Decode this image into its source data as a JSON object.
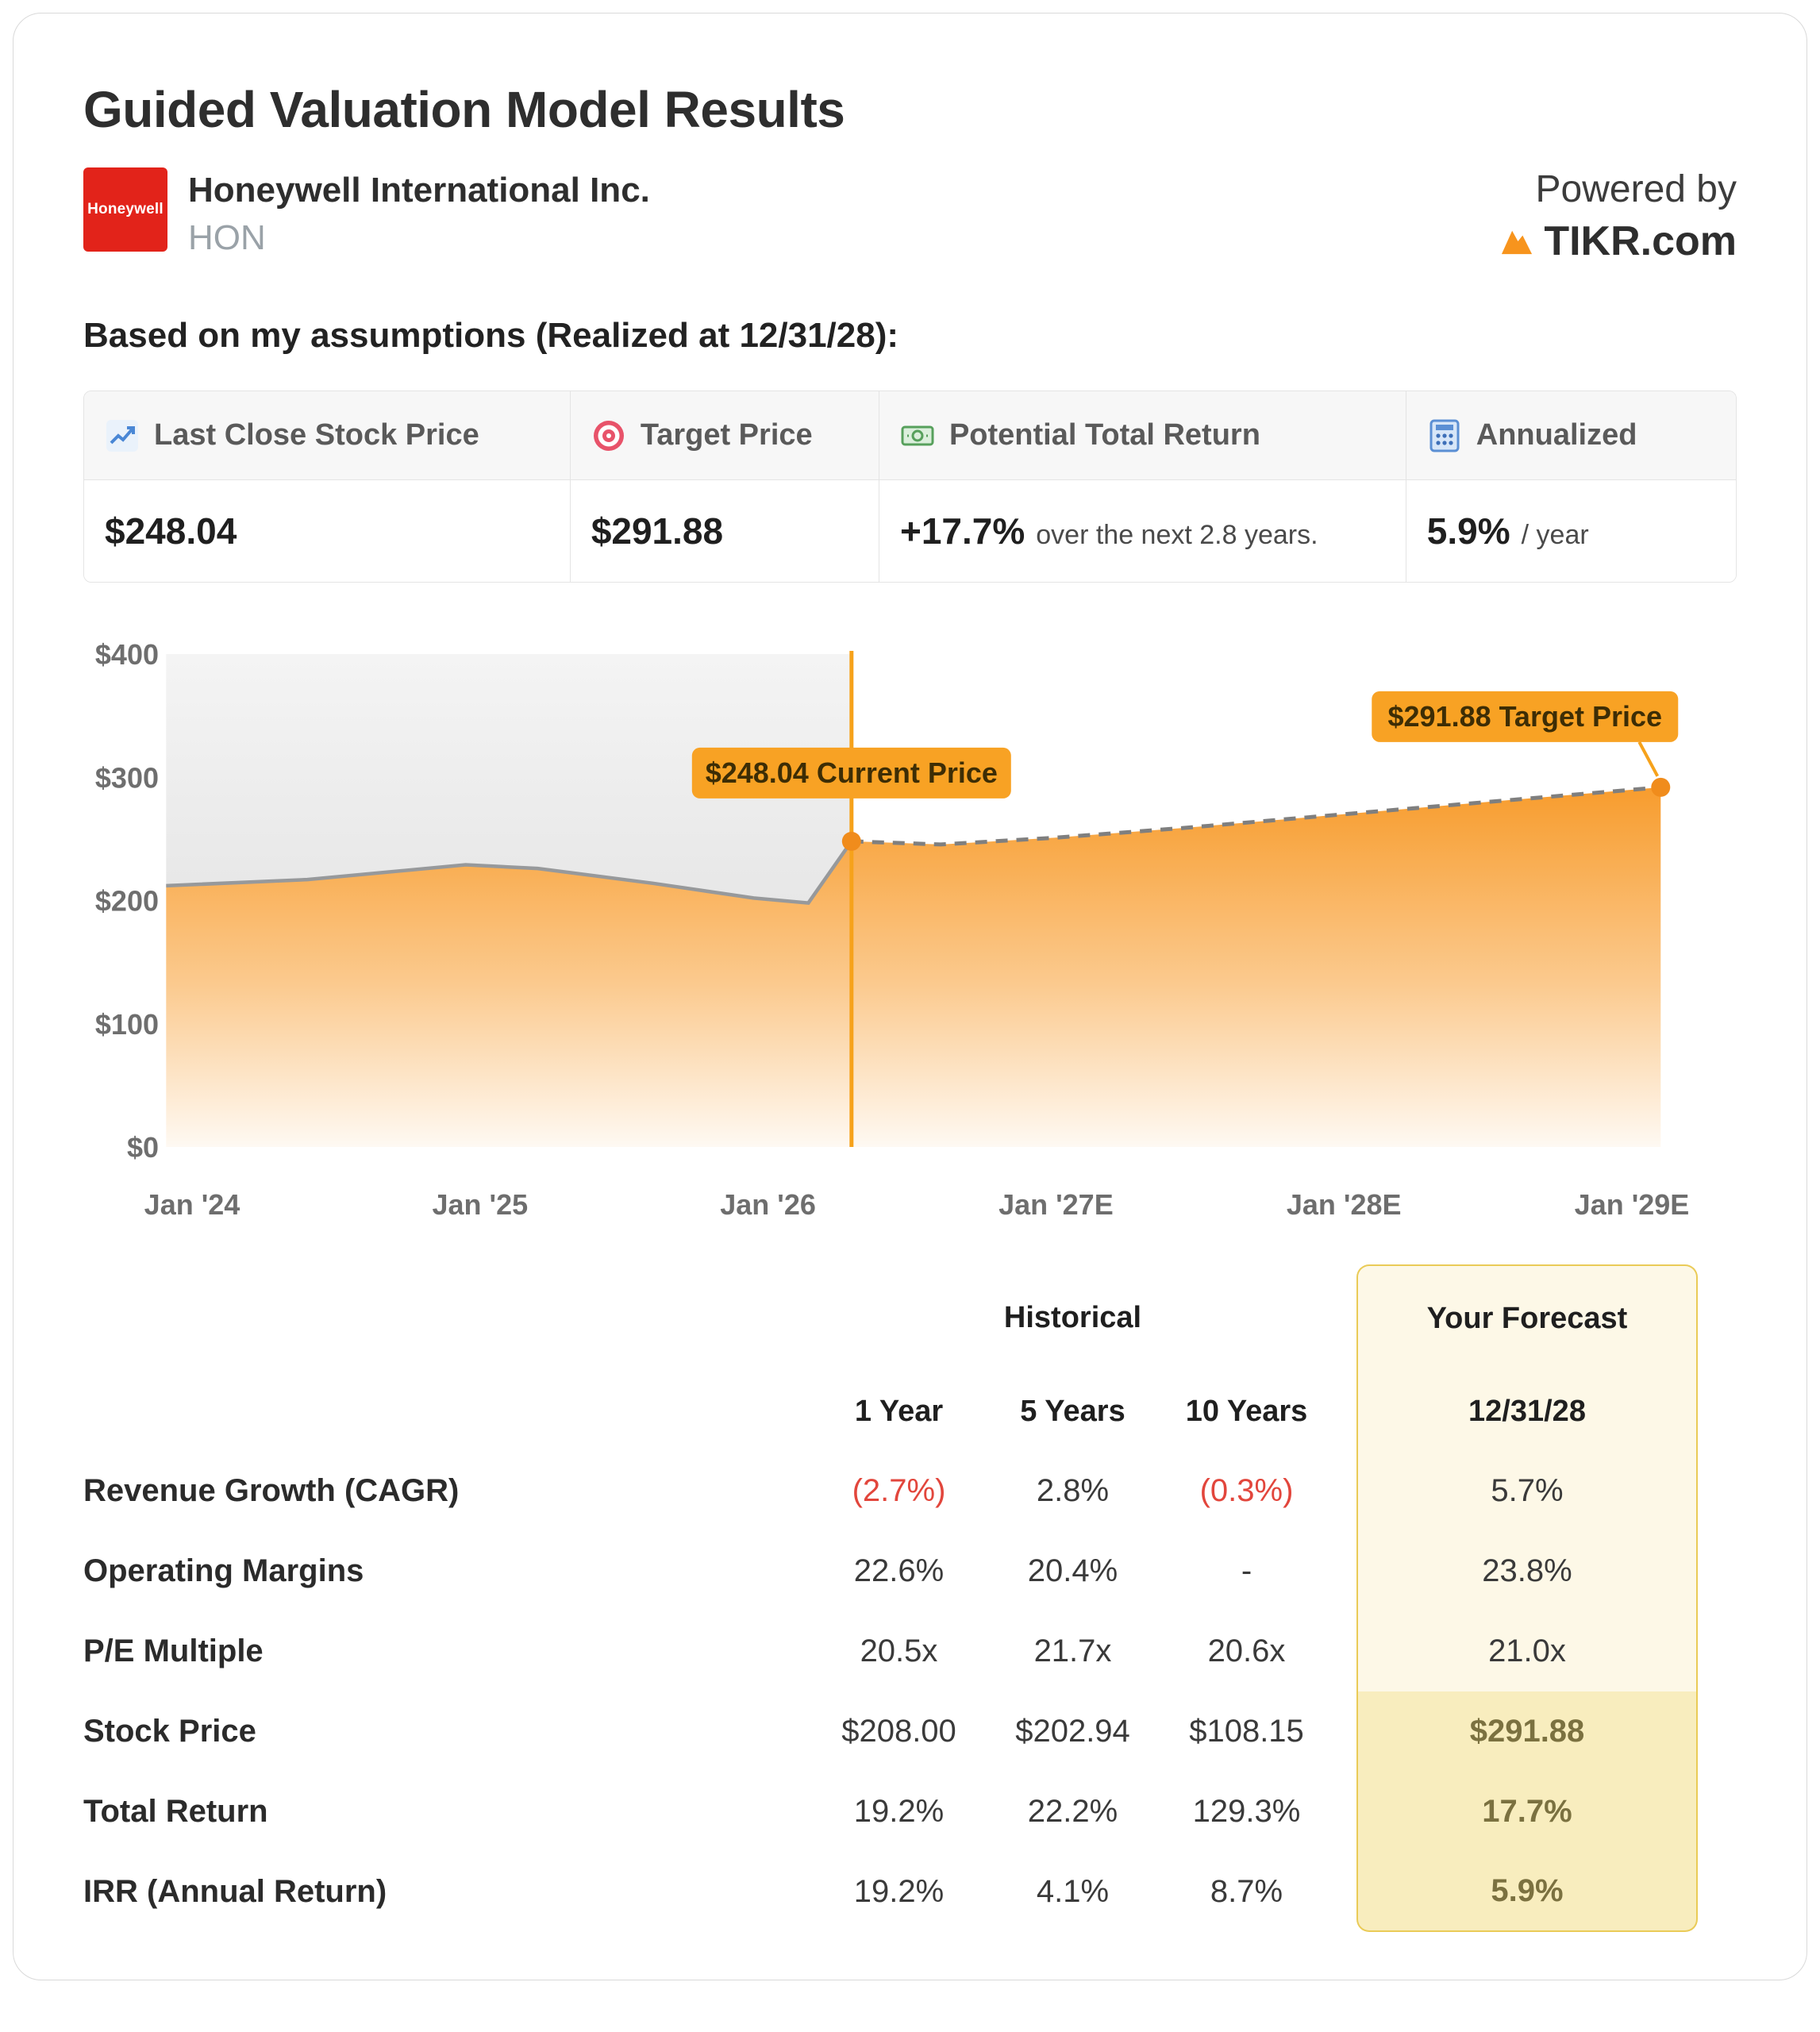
{
  "page": {
    "title": "Guided Valuation Model Results",
    "company": {
      "name": "Honeywell International Inc.",
      "ticker": "HON",
      "logo_text": "Honeywell",
      "logo_color": "#E2231A"
    },
    "powered_by": {
      "prefix": "Powered by",
      "brand": "TIKR.com"
    },
    "assumptions_line": "Based on my assumptions (Realized at 12/31/28):"
  },
  "summary_cards": [
    {
      "icon": "line-chart-icon",
      "label": "Last Close Stock Price",
      "value": "$248.04",
      "suffix": ""
    },
    {
      "icon": "target-icon",
      "label": "Target Price",
      "value": "$291.88",
      "suffix": ""
    },
    {
      "icon": "banknote-icon",
      "label": "Potential Total Return",
      "value": "+17.7%",
      "suffix": "over the next 2.8 years."
    },
    {
      "icon": "calculator-icon",
      "label": "Annualized",
      "value": "5.9%",
      "suffix": "/ year"
    }
  ],
  "chart_data": {
    "type": "area",
    "title": "",
    "xlabel": "",
    "ylabel": "",
    "ylim": [
      0,
      400
    ],
    "x_ticks": [
      "Jan '24",
      "Jan '25",
      "Jan '26",
      "Jan '27E",
      "Jan '28E",
      "Jan '29E"
    ],
    "y_ticks": [
      "$0",
      "$100",
      "$200",
      "$300",
      "$400"
    ],
    "grid": false,
    "legend": false,
    "series": [
      {
        "name": "Historical Price",
        "style": "solid",
        "points": [
          [
            2023.91,
            212
          ],
          [
            2024.4,
            217
          ],
          [
            2024.95,
            229
          ],
          [
            2025.2,
            226
          ],
          [
            2025.6,
            214
          ],
          [
            2025.95,
            202
          ],
          [
            2026.14,
            198
          ],
          [
            2026.29,
            248.04
          ]
        ]
      },
      {
        "name": "Forecast Price",
        "style": "dashed",
        "points": [
          [
            2026.29,
            248.04
          ],
          [
            2026.6,
            245.5
          ],
          [
            2027.0,
            251
          ],
          [
            2027.45,
            259
          ],
          [
            2028.0,
            270
          ],
          [
            2028.5,
            280
          ],
          [
            2029.1,
            291.88
          ]
        ]
      }
    ],
    "annotations": [
      {
        "label": "$248.04 Current Price",
        "x": 2026.29,
        "y": 248.04
      },
      {
        "label": "$291.88 Target Price",
        "x": 2029.1,
        "y": 291.88
      }
    ],
    "colors": {
      "fill": "#F7951E",
      "historical_line": "#97999B",
      "forecast_line": "#7F7F7F",
      "marker": "#F08C1C",
      "vertical_line": "#F6A21B",
      "badge": "#F8A224"
    }
  },
  "metrics_table": {
    "group_headers": {
      "historical": "Historical",
      "forecast": "Your Forecast"
    },
    "col_headers": [
      "1 Year",
      "5 Years",
      "10 Years"
    ],
    "forecast_col_header": "12/31/28",
    "rows": [
      {
        "label": "Revenue Growth (CAGR)",
        "values": [
          "(2.7%)",
          "2.8%",
          "(0.3%)"
        ],
        "forecast": "5.7%",
        "highlight": false
      },
      {
        "label": "Operating Margins",
        "values": [
          "22.6%",
          "20.4%",
          "-"
        ],
        "forecast": "23.8%",
        "highlight": false
      },
      {
        "label": "P/E Multiple",
        "values": [
          "20.5x",
          "21.7x",
          "20.6x"
        ],
        "forecast": "21.0x",
        "highlight": false
      },
      {
        "label": "Stock Price",
        "values": [
          "$208.00",
          "$202.94",
          "$108.15"
        ],
        "forecast": "$291.88",
        "highlight": true
      },
      {
        "label": "Total Return",
        "values": [
          "19.2%",
          "22.2%",
          "129.3%"
        ],
        "forecast": "17.7%",
        "highlight": true
      },
      {
        "label": "IRR (Annual Return)",
        "values": [
          "19.2%",
          "4.1%",
          "8.7%"
        ],
        "forecast": "5.9%",
        "highlight": true
      }
    ]
  }
}
